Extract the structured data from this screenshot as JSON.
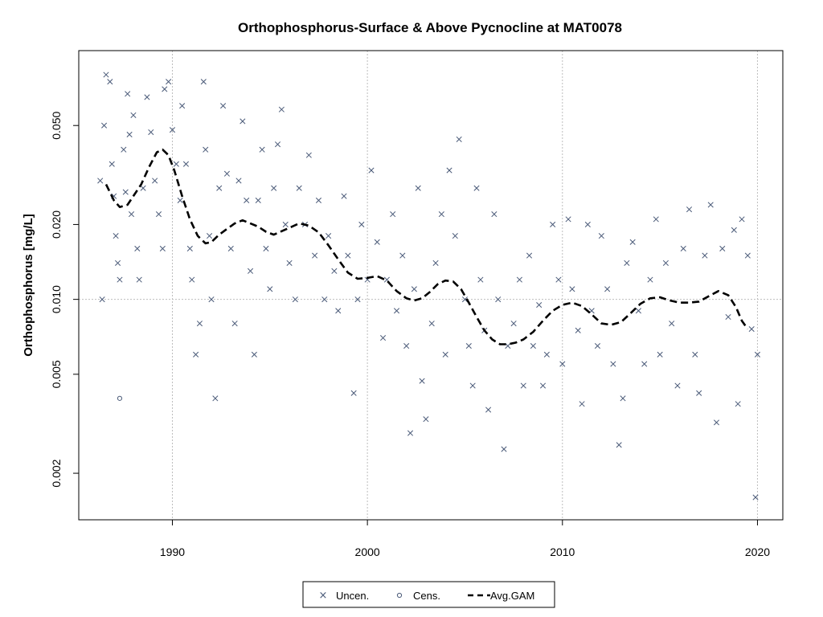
{
  "chart_data": {
    "type": "scatter",
    "title": "Orthophosphorus-Surface & Above Pycnocline at MAT0078",
    "xlabel": "",
    "ylabel": "Orthophosphorus [mg/L]",
    "y_scale": "log",
    "xlim": [
      1985.2,
      2021.3
    ],
    "ylim": [
      0.0013,
      0.1
    ],
    "x_ticks": [
      1990,
      2000,
      2010,
      2020
    ],
    "x_tick_labels": [
      "1990",
      "2000",
      "2010",
      "2020"
    ],
    "y_ticks": [
      0.002,
      0.005,
      0.01,
      0.02,
      0.05
    ],
    "y_tick_labels": [
      "0.002",
      "0.005",
      "0.010",
      "0.020",
      "0.050"
    ],
    "grid": {
      "x": [
        1990,
        2000,
        2010,
        2020
      ],
      "y": [
        0.01
      ]
    },
    "colors": {
      "points": "#4a5a78",
      "gam": "#000000",
      "grid": "#bdbdbd"
    },
    "legend": {
      "position": "bottom-center",
      "entries": [
        {
          "label": "Uncen.",
          "marker": "cross"
        },
        {
          "label": "Cens.",
          "marker": "circle"
        },
        {
          "label": "Avg.GAM",
          "marker": "dashed-line"
        }
      ]
    },
    "series": [
      {
        "name": "Uncen.",
        "type": "scatter",
        "marker": "cross",
        "points": [
          [
            1986.3,
            0.03
          ],
          [
            1986.4,
            0.01
          ],
          [
            1986.5,
            0.05
          ],
          [
            1986.6,
            0.08
          ],
          [
            1986.8,
            0.075
          ],
          [
            1986.9,
            0.035
          ],
          [
            1987.0,
            0.026
          ],
          [
            1987.1,
            0.018
          ],
          [
            1987.2,
            0.014
          ],
          [
            1987.3,
            0.012
          ],
          [
            1987.5,
            0.04
          ],
          [
            1987.6,
            0.027
          ],
          [
            1987.7,
            0.067
          ],
          [
            1987.8,
            0.046
          ],
          [
            1987.9,
            0.022
          ],
          [
            1988.0,
            0.055
          ],
          [
            1988.2,
            0.016
          ],
          [
            1988.3,
            0.012
          ],
          [
            1988.5,
            0.028
          ],
          [
            1988.7,
            0.065
          ],
          [
            1988.9,
            0.047
          ],
          [
            1989.1,
            0.03
          ],
          [
            1989.3,
            0.022
          ],
          [
            1989.5,
            0.016
          ],
          [
            1989.6,
            0.07
          ],
          [
            1989.8,
            0.075
          ],
          [
            1990.0,
            0.048
          ],
          [
            1990.2,
            0.035
          ],
          [
            1990.4,
            0.025
          ],
          [
            1990.5,
            0.06
          ],
          [
            1990.7,
            0.035
          ],
          [
            1990.9,
            0.016
          ],
          [
            1991.0,
            0.012
          ],
          [
            1991.2,
            0.006
          ],
          [
            1991.4,
            0.008
          ],
          [
            1991.6,
            0.075
          ],
          [
            1991.7,
            0.04
          ],
          [
            1991.9,
            0.018
          ],
          [
            1992.0,
            0.01
          ],
          [
            1992.2,
            0.004
          ],
          [
            1992.4,
            0.028
          ],
          [
            1992.6,
            0.06
          ],
          [
            1992.8,
            0.032
          ],
          [
            1993.0,
            0.016
          ],
          [
            1993.2,
            0.008
          ],
          [
            1993.4,
            0.03
          ],
          [
            1993.6,
            0.052
          ],
          [
            1993.8,
            0.025
          ],
          [
            1994.0,
            0.013
          ],
          [
            1994.2,
            0.006
          ],
          [
            1994.4,
            0.025
          ],
          [
            1994.6,
            0.04
          ],
          [
            1994.8,
            0.016
          ],
          [
            1995.0,
            0.011
          ],
          [
            1995.2,
            0.028
          ],
          [
            1995.4,
            0.042
          ],
          [
            1995.6,
            0.058
          ],
          [
            1995.8,
            0.02
          ],
          [
            1996.0,
            0.014
          ],
          [
            1996.3,
            0.01
          ],
          [
            1996.5,
            0.028
          ],
          [
            1996.8,
            0.02
          ],
          [
            1997.0,
            0.038
          ],
          [
            1997.3,
            0.015
          ],
          [
            1997.5,
            0.025
          ],
          [
            1997.8,
            0.01
          ],
          [
            1998.0,
            0.018
          ],
          [
            1998.3,
            0.013
          ],
          [
            1998.5,
            0.009
          ],
          [
            1998.8,
            0.026
          ],
          [
            1999.0,
            0.015
          ],
          [
            1999.3,
            0.0042
          ],
          [
            1999.5,
            0.01
          ],
          [
            1999.7,
            0.02
          ],
          [
            2000.0,
            0.012
          ],
          [
            2000.2,
            0.033
          ],
          [
            2000.5,
            0.017
          ],
          [
            2000.8,
            0.007
          ],
          [
            2001.0,
            0.012
          ],
          [
            2001.3,
            0.022
          ],
          [
            2001.5,
            0.009
          ],
          [
            2001.8,
            0.015
          ],
          [
            2002.0,
            0.0065
          ],
          [
            2002.2,
            0.0029
          ],
          [
            2002.4,
            0.011
          ],
          [
            2002.6,
            0.028
          ],
          [
            2002.8,
            0.0047
          ],
          [
            2003.0,
            0.0033
          ],
          [
            2003.3,
            0.008
          ],
          [
            2003.5,
            0.014
          ],
          [
            2003.8,
            0.022
          ],
          [
            2004.0,
            0.006
          ],
          [
            2004.2,
            0.033
          ],
          [
            2004.5,
            0.018
          ],
          [
            2004.7,
            0.044
          ],
          [
            2005.0,
            0.01
          ],
          [
            2005.2,
            0.0065
          ],
          [
            2005.4,
            0.0045
          ],
          [
            2005.6,
            0.028
          ],
          [
            2005.8,
            0.012
          ],
          [
            2006.0,
            0.0075
          ],
          [
            2006.2,
            0.0036
          ],
          [
            2006.5,
            0.022
          ],
          [
            2006.7,
            0.01
          ],
          [
            2007.0,
            0.0025
          ],
          [
            2007.2,
            0.0065
          ],
          [
            2007.5,
            0.008
          ],
          [
            2007.8,
            0.012
          ],
          [
            2008.0,
            0.0045
          ],
          [
            2008.3,
            0.015
          ],
          [
            2008.5,
            0.0065
          ],
          [
            2008.8,
            0.0095
          ],
          [
            2009.0,
            0.0045
          ],
          [
            2009.2,
            0.006
          ],
          [
            2009.5,
            0.02
          ],
          [
            2009.8,
            0.012
          ],
          [
            2010.0,
            0.0055
          ],
          [
            2010.3,
            0.021
          ],
          [
            2010.5,
            0.011
          ],
          [
            2010.8,
            0.0075
          ],
          [
            2011.0,
            0.0038
          ],
          [
            2011.3,
            0.02
          ],
          [
            2011.5,
            0.009
          ],
          [
            2011.8,
            0.0065
          ],
          [
            2012.0,
            0.018
          ],
          [
            2012.3,
            0.011
          ],
          [
            2012.6,
            0.0055
          ],
          [
            2012.9,
            0.0026
          ],
          [
            2013.1,
            0.004
          ],
          [
            2013.3,
            0.014
          ],
          [
            2013.6,
            0.017
          ],
          [
            2013.9,
            0.009
          ],
          [
            2014.2,
            0.0055
          ],
          [
            2014.5,
            0.012
          ],
          [
            2014.8,
            0.021
          ],
          [
            2015.0,
            0.006
          ],
          [
            2015.3,
            0.014
          ],
          [
            2015.6,
            0.008
          ],
          [
            2015.9,
            0.0045
          ],
          [
            2016.2,
            0.016
          ],
          [
            2016.5,
            0.023
          ],
          [
            2016.8,
            0.006
          ],
          [
            2017.0,
            0.0042
          ],
          [
            2017.3,
            0.015
          ],
          [
            2017.6,
            0.024
          ],
          [
            2017.9,
            0.0032
          ],
          [
            2018.2,
            0.016
          ],
          [
            2018.5,
            0.0085
          ],
          [
            2018.8,
            0.019
          ],
          [
            2019.0,
            0.0038
          ],
          [
            2019.2,
            0.021
          ],
          [
            2019.5,
            0.015
          ],
          [
            2019.7,
            0.0076
          ],
          [
            2019.9,
            0.0016
          ],
          [
            2020.0,
            0.006
          ]
        ]
      },
      {
        "name": "Cens.",
        "type": "scatter",
        "marker": "circle",
        "points": [
          [
            1987.3,
            0.004
          ]
        ]
      },
      {
        "name": "Avg.GAM",
        "type": "line",
        "style": "dashed",
        "points": [
          [
            1986.6,
            0.029
          ],
          [
            1987.0,
            0.025
          ],
          [
            1987.3,
            0.0235
          ],
          [
            1987.7,
            0.024
          ],
          [
            1988.0,
            0.026
          ],
          [
            1988.4,
            0.029
          ],
          [
            1988.8,
            0.034
          ],
          [
            1989.2,
            0.039
          ],
          [
            1989.5,
            0.04
          ],
          [
            1989.8,
            0.038
          ],
          [
            1990.1,
            0.033
          ],
          [
            1990.5,
            0.026
          ],
          [
            1990.9,
            0.021
          ],
          [
            1991.3,
            0.018
          ],
          [
            1991.7,
            0.0168
          ],
          [
            1992.0,
            0.017
          ],
          [
            1992.4,
            0.0182
          ],
          [
            1992.8,
            0.0192
          ],
          [
            1993.2,
            0.0202
          ],
          [
            1993.6,
            0.0208
          ],
          [
            1994.0,
            0.0202
          ],
          [
            1994.4,
            0.0196
          ],
          [
            1994.8,
            0.0187
          ],
          [
            1995.2,
            0.0182
          ],
          [
            1995.6,
            0.0188
          ],
          [
            1996.0,
            0.0194
          ],
          [
            1996.5,
            0.0202
          ],
          [
            1997.0,
            0.0198
          ],
          [
            1997.5,
            0.0186
          ],
          [
            1998.0,
            0.0165
          ],
          [
            1998.5,
            0.0145
          ],
          [
            1999.0,
            0.0128
          ],
          [
            1999.5,
            0.0121
          ],
          [
            2000.0,
            0.0122
          ],
          [
            2000.5,
            0.0124
          ],
          [
            2001.0,
            0.0119
          ],
          [
            2001.5,
            0.0108
          ],
          [
            2002.0,
            0.0101
          ],
          [
            2002.4,
            0.0099
          ],
          [
            2002.8,
            0.0101
          ],
          [
            2003.2,
            0.0107
          ],
          [
            2003.6,
            0.0115
          ],
          [
            2004.0,
            0.0119
          ],
          [
            2004.4,
            0.0118
          ],
          [
            2004.8,
            0.011
          ],
          [
            2005.2,
            0.0097
          ],
          [
            2005.6,
            0.0085
          ],
          [
            2006.0,
            0.0075
          ],
          [
            2006.4,
            0.0069
          ],
          [
            2006.8,
            0.0066
          ],
          [
            2007.2,
            0.0066
          ],
          [
            2007.6,
            0.0067
          ],
          [
            2008.0,
            0.0069
          ],
          [
            2008.5,
            0.0074
          ],
          [
            2009.0,
            0.0082
          ],
          [
            2009.5,
            0.009
          ],
          [
            2010.0,
            0.0095
          ],
          [
            2010.5,
            0.0097
          ],
          [
            2011.0,
            0.0094
          ],
          [
            2011.5,
            0.0087
          ],
          [
            2012.0,
            0.008
          ],
          [
            2012.5,
            0.0079
          ],
          [
            2013.0,
            0.0081
          ],
          [
            2013.5,
            0.0088
          ],
          [
            2014.0,
            0.0096
          ],
          [
            2014.5,
            0.0101
          ],
          [
            2015.0,
            0.0102
          ],
          [
            2015.5,
            0.0099
          ],
          [
            2016.0,
            0.0097
          ],
          [
            2016.5,
            0.0097
          ],
          [
            2017.0,
            0.0098
          ],
          [
            2017.5,
            0.0103
          ],
          [
            2018.0,
            0.0108
          ],
          [
            2018.5,
            0.0104
          ],
          [
            2018.9,
            0.0093
          ],
          [
            2019.2,
            0.0082
          ],
          [
            2019.5,
            0.0076
          ]
        ]
      }
    ]
  }
}
